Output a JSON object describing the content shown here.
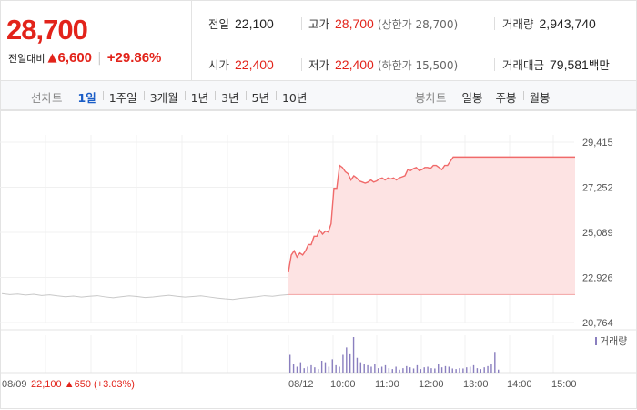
{
  "summary": {
    "price": "28,700",
    "change_label": "전일대비",
    "change_arrow": "▲",
    "change_value": "6,600",
    "change_pct": "+29.86%",
    "prev_close_label": "전일",
    "prev_close": "22,100",
    "high_label": "고가",
    "high": "28,700",
    "upper_limit": "(상한가 28,700)",
    "volume_label": "거래량",
    "volume": "2,943,740",
    "open_label": "시가",
    "open": "22,400",
    "low_label": "저가",
    "low": "22,400",
    "lower_limit": "(하한가 15,500)",
    "amount_label": "거래대금",
    "amount": "79,581",
    "amount_unit": "백만"
  },
  "tabs": {
    "line_label": "선차트",
    "line_items": [
      "1일",
      "1주일",
      "3개월",
      "1년",
      "3년",
      "5년",
      "10년"
    ],
    "line_active": 0,
    "candle_label": "봉차트",
    "candle_items": [
      "일봉",
      "주봉",
      "월봉"
    ]
  },
  "colors": {
    "up": "#e2231a",
    "line": "#f06a6a",
    "fill": "#fde3e3",
    "prev": "#c8c8c8",
    "volume": "#8a7fbf"
  },
  "chart_data": {
    "type": "line",
    "y_ticks": [
      "29,415",
      "27,252",
      "25,089",
      "22,926",
      "20,764"
    ],
    "ylim": [
      20764,
      29415
    ],
    "baseline": 22100,
    "x_tick_labels": [
      "08/09",
      "08/12",
      "10:00",
      "11:00",
      "12:00",
      "13:00",
      "14:00",
      "15:00"
    ],
    "prev_day": {
      "label": "08/09",
      "values": [
        22150,
        22100,
        22130,
        22080,
        22120,
        22060,
        22090,
        22040,
        22000,
        22030,
        21980,
        22020,
        22050,
        21990,
        21950,
        22000,
        22040,
        22010,
        21960,
        21990,
        22030,
        22070,
        22020,
        21980,
        22010,
        22040,
        21990,
        21940,
        21900,
        21870,
        21920,
        21960,
        22000,
        22050,
        22020,
        22070,
        22100
      ]
    },
    "today": {
      "label": "08/12",
      "values": [
        23200,
        24000,
        24200,
        23900,
        24100,
        24000,
        24200,
        24500,
        24500,
        24900,
        24900,
        25200,
        25000,
        25150,
        25100,
        25500,
        27200,
        27200,
        28300,
        28200,
        28000,
        27900,
        27600,
        27800,
        27700,
        27550,
        27500,
        27450,
        27500,
        27600,
        27500,
        27550,
        27650,
        27700,
        27600,
        27700,
        27650,
        27700,
        27600,
        27700,
        27750,
        27800,
        28100,
        28050,
        28150,
        28200,
        28050,
        28100,
        28200,
        28200,
        28150,
        28300,
        28300,
        28200,
        28100,
        28300,
        28300,
        28500,
        28700,
        28700,
        28700,
        28700,
        28700,
        28700,
        28700,
        28700,
        28700,
        28700,
        28700,
        28700,
        28700,
        28700,
        28700,
        28700,
        28700
      ]
    },
    "volume_label": "거래량",
    "volume": [
      60,
      30,
      20,
      35,
      15,
      20,
      25,
      18,
      12,
      40,
      35,
      20,
      45,
      25,
      20,
      60,
      85,
      65,
      120,
      50,
      35,
      30,
      25,
      20,
      30,
      15,
      20,
      25,
      15,
      12,
      20,
      10,
      15,
      22,
      18,
      14,
      25,
      12,
      18,
      20,
      15,
      14,
      30,
      18,
      22,
      20,
      14,
      12,
      15,
      14,
      18,
      20,
      25,
      15,
      12,
      18,
      22,
      30,
      70,
      10
    ],
    "footer": {
      "date": "08/09",
      "close": "22,100",
      "arrow": "▲",
      "change": "650",
      "pct": "(+3.03%)"
    }
  }
}
